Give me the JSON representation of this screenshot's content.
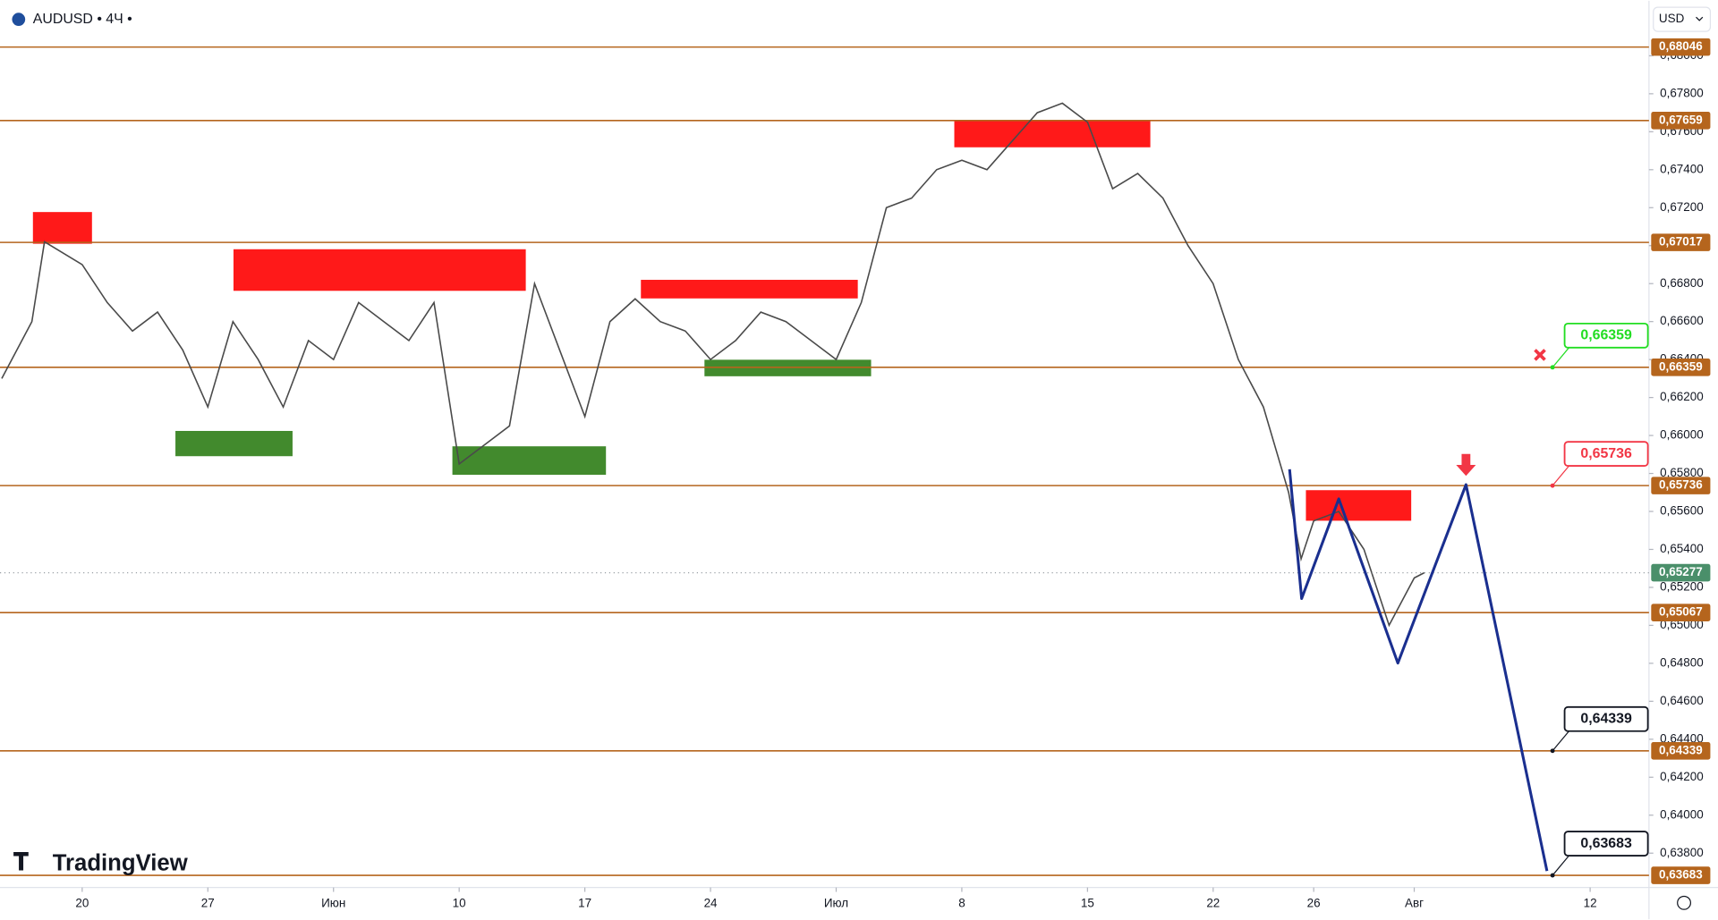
{
  "chart_data": {
    "type": "line",
    "title": "AUDUSD • 4Ч •",
    "currency": "USD",
    "logo": "TradingView",
    "grid": false,
    "color": "#4a4a4a",
    "xlim": [
      -3.27,
      62.34
    ],
    "ylim": [
      0.63619,
      0.6829
    ],
    "xticks": [
      {
        "value": 0,
        "label": "20"
      },
      {
        "value": 5,
        "label": "27"
      },
      {
        "value": 10,
        "label": "Июн"
      },
      {
        "value": 15,
        "label": "10"
      },
      {
        "value": 20,
        "label": "17"
      },
      {
        "value": 25,
        "label": "24"
      },
      {
        "value": 30,
        "label": "Июл"
      },
      {
        "value": 35,
        "label": "8"
      },
      {
        "value": 40,
        "label": "15"
      },
      {
        "value": 45,
        "label": "22"
      },
      {
        "value": 49,
        "label": "26"
      },
      {
        "value": 53,
        "label": "Авг"
      },
      {
        "value": 60,
        "label": "12"
      }
    ],
    "yticks": [
      {
        "value": 0.638,
        "label": "0,63800"
      },
      {
        "value": 0.64,
        "label": "0,64000"
      },
      {
        "value": 0.642,
        "label": "0,64200"
      },
      {
        "value": 0.644,
        "label": "0,64400"
      },
      {
        "value": 0.646,
        "label": "0,64600"
      },
      {
        "value": 0.648,
        "label": "0,64800"
      },
      {
        "value": 0.65,
        "label": "0,65000"
      },
      {
        "value": 0.652,
        "label": "0,65200"
      },
      {
        "value": 0.654,
        "label": "0,65400"
      },
      {
        "value": 0.656,
        "label": "0,65600"
      },
      {
        "value": 0.658,
        "label": "0,65800"
      },
      {
        "value": 0.66,
        "label": "0,66000"
      },
      {
        "value": 0.662,
        "label": "0,66200"
      },
      {
        "value": 0.664,
        "label": "0,66400"
      },
      {
        "value": 0.666,
        "label": "0,66600"
      },
      {
        "value": 0.668,
        "label": "0,66800"
      },
      {
        "value": 0.67,
        "label": "0,67000"
      },
      {
        "value": 0.672,
        "label": "0,67200"
      },
      {
        "value": 0.674,
        "label": "0,67400"
      },
      {
        "value": 0.676,
        "label": "0,67600"
      },
      {
        "value": 0.678,
        "label": "0,67800"
      },
      {
        "value": 0.68,
        "label": "0,68000"
      }
    ],
    "x": [
      -3.2,
      -2,
      -1.5,
      0,
      1,
      2,
      3,
      4,
      5,
      6,
      7,
      8,
      9,
      10,
      11,
      12,
      13,
      14,
      15,
      16,
      17,
      18,
      19,
      20,
      21,
      22,
      23,
      24,
      25,
      26,
      27,
      28,
      29,
      30,
      31,
      32,
      33,
      34,
      35,
      36,
      37,
      38,
      39,
      40,
      41,
      42,
      43,
      44,
      45,
      46,
      47,
      48,
      48.5,
      49,
      50,
      51,
      52,
      53,
      53.4
    ],
    "values": [
      0.663,
      0.666,
      0.6702,
      0.669,
      0.667,
      0.6655,
      0.6665,
      0.6645,
      0.6615,
      0.666,
      0.664,
      0.6615,
      0.665,
      0.664,
      0.667,
      0.666,
      0.665,
      0.667,
      0.6585,
      0.6595,
      0.6605,
      0.668,
      0.6645,
      0.661,
      0.666,
      0.6672,
      0.666,
      0.6655,
      0.664,
      0.665,
      0.6665,
      0.666,
      0.665,
      0.664,
      0.667,
      0.672,
      0.6725,
      0.674,
      0.6745,
      0.674,
      0.6755,
      0.677,
      0.6775,
      0.6765,
      0.673,
      0.6738,
      0.6725,
      0.67,
      0.668,
      0.664,
      0.6615,
      0.657,
      0.6535,
      0.6555,
      0.656,
      0.654,
      0.65,
      0.6525,
      0.65277
    ],
    "current_price": {
      "value": 0.65277,
      "label": "0,65277",
      "color": "#4a8f6a"
    },
    "levels": {
      "color": "#b5651d",
      "items": [
        {
          "value": 0.68046,
          "label": "0,68046"
        },
        {
          "value": 0.67659,
          "label": "0,67659"
        },
        {
          "value": 0.67017,
          "label": "0,67017"
        },
        {
          "value": 0.66359,
          "label": "0,66359"
        },
        {
          "value": 0.65736,
          "label": "0,65736"
        },
        {
          "value": 0.65067,
          "label": "0,65067"
        },
        {
          "value": 0.64339,
          "label": "0,64339"
        },
        {
          "value": 0.63683,
          "label": "0,63683"
        }
      ]
    },
    "callouts": [
      {
        "value": 0.66359,
        "label": "0,66359",
        "color": "#22dd22"
      },
      {
        "value": 0.65736,
        "label": "0,65736",
        "color": "#f23645"
      },
      {
        "value": 0.64339,
        "label": "0,64339",
        "color": "#131722"
      },
      {
        "value": 0.63683,
        "label": "0,63683",
        "color": "#131722"
      }
    ],
    "zones": [
      {
        "x0": -1.96,
        "x1": 0.39,
        "y0": 0.6701,
        "y1": 0.67177,
        "color": "#ff0000"
      },
      {
        "x0": 6.02,
        "x1": 17.65,
        "y0": 0.66762,
        "y1": 0.66981,
        "color": "#ff0000"
      },
      {
        "x0": 22.23,
        "x1": 30.86,
        "y0": 0.66722,
        "y1": 0.6682,
        "color": "#ff0000"
      },
      {
        "x0": 34.7,
        "x1": 42.5,
        "y0": 0.67518,
        "y1": 0.67662,
        "color": "#ff0000"
      },
      {
        "x0": 48.69,
        "x1": 52.88,
        "y0": 0.65551,
        "y1": 0.65712,
        "color": "#ff0000"
      },
      {
        "x0": 3.71,
        "x1": 8.37,
        "y0": 0.65891,
        "y1": 0.66024,
        "color": "#2e7d16"
      },
      {
        "x0": 14.73,
        "x1": 20.84,
        "y0": 0.65793,
        "y1": 0.65943,
        "color": "#2e7d16"
      },
      {
        "x0": 24.76,
        "x1": 31.39,
        "y0": 0.66312,
        "y1": 0.66399,
        "color": "#2e7d16"
      }
    ],
    "projection": {
      "color": "#1a2f8f",
      "x": [
        48.04,
        48.52,
        50.0,
        52.35,
        55.06,
        58.28
      ],
      "values": [
        0.65822,
        0.65141,
        0.65666,
        0.64801,
        0.65741,
        0.63706
      ]
    }
  }
}
